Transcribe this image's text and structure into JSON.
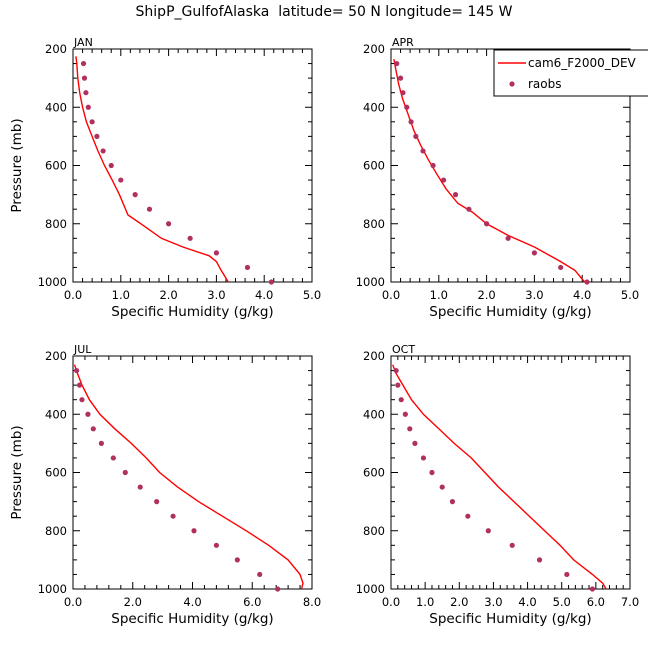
{
  "title": "ShipP_GulfofAlaska  latitude= 50 N longitude= 145 W",
  "colors": {
    "model": "#ff0000",
    "obs": "#b03060"
  },
  "chart_data": [
    {
      "type": "line",
      "panel_label": "JAN",
      "xlabel": "Specific Humidity (g/kg)",
      "ylabel": "Pressure (mb)",
      "xlim": [
        0,
        5
      ],
      "ylim": [
        1000,
        200
      ],
      "xticks": [
        "0.0",
        "1.0",
        "2.0",
        "3.0",
        "4.0",
        "5.0"
      ],
      "yticks": [
        "200",
        "400",
        "600",
        "800",
        "1000"
      ],
      "legend": null,
      "series": [
        {
          "kind": "line",
          "points": [
            [
              0.06,
              225
            ],
            [
              0.08,
              250
            ],
            [
              0.1,
              300
            ],
            [
              0.14,
              350
            ],
            [
              0.2,
              400
            ],
            [
              0.28,
              450
            ],
            [
              0.4,
              500
            ],
            [
              0.52,
              550
            ],
            [
              0.66,
              600
            ],
            [
              0.82,
              650
            ],
            [
              0.97,
              700
            ],
            [
              1.15,
              770
            ],
            [
              1.42,
              800
            ],
            [
              1.85,
              850
            ],
            [
              2.3,
              880
            ],
            [
              2.85,
              910
            ],
            [
              3.0,
              930
            ],
            [
              3.1,
              960
            ],
            [
              3.25,
              1000
            ]
          ]
        },
        {
          "kind": "scatter",
          "points": [
            [
              0.22,
              250
            ],
            [
              0.24,
              300
            ],
            [
              0.27,
              350
            ],
            [
              0.32,
              400
            ],
            [
              0.4,
              450
            ],
            [
              0.5,
              500
            ],
            [
              0.63,
              550
            ],
            [
              0.8,
              600
            ],
            [
              1.0,
              650
            ],
            [
              1.3,
              700
            ],
            [
              1.6,
              750
            ],
            [
              2.0,
              800
            ],
            [
              2.45,
              850
            ],
            [
              3.0,
              900
            ],
            [
              3.65,
              950
            ],
            [
              4.15,
              1000
            ]
          ]
        }
      ]
    },
    {
      "type": "line",
      "panel_label": "APR",
      "xlabel": "Specific Humidity (g/kg)",
      "ylabel": "",
      "xlim": [
        0,
        5
      ],
      "ylim": [
        1000,
        200
      ],
      "xticks": [
        "0.0",
        "1.0",
        "2.0",
        "3.0",
        "4.0",
        "5.0"
      ],
      "yticks": [
        "200",
        "400",
        "600",
        "800",
        "1000"
      ],
      "legend": {
        "entries": [
          "cam6_F2000_DEV",
          "raobs"
        ]
      },
      "series": [
        {
          "kind": "line",
          "name": "cam6_F2000_DEV",
          "points": [
            [
              0.06,
              235
            ],
            [
              0.1,
              270
            ],
            [
              0.16,
              320
            ],
            [
              0.24,
              370
            ],
            [
              0.35,
              420
            ],
            [
              0.48,
              480
            ],
            [
              0.62,
              530
            ],
            [
              0.78,
              580
            ],
            [
              0.96,
              630
            ],
            [
              1.15,
              680
            ],
            [
              1.4,
              730
            ],
            [
              1.7,
              760
            ],
            [
              2.0,
              800
            ],
            [
              2.45,
              840
            ],
            [
              3.0,
              880
            ],
            [
              3.55,
              930
            ],
            [
              3.85,
              960
            ],
            [
              4.05,
              1000
            ]
          ]
        },
        {
          "kind": "scatter",
          "name": "raobs",
          "points": [
            [
              0.12,
              250
            ],
            [
              0.2,
              300
            ],
            [
              0.25,
              350
            ],
            [
              0.33,
              400
            ],
            [
              0.42,
              450
            ],
            [
              0.52,
              500
            ],
            [
              0.67,
              550
            ],
            [
              0.88,
              600
            ],
            [
              1.1,
              650
            ],
            [
              1.35,
              700
            ],
            [
              1.63,
              750
            ],
            [
              2.0,
              800
            ],
            [
              2.45,
              850
            ],
            [
              3.0,
              900
            ],
            [
              3.55,
              950
            ],
            [
              4.1,
              1000
            ]
          ]
        }
      ]
    },
    {
      "type": "line",
      "panel_label": "JUL",
      "xlabel": "Specific Humidity (g/kg)",
      "ylabel": "Pressure (mb)",
      "xlim": [
        0,
        8
      ],
      "ylim": [
        1000,
        200
      ],
      "xticks": [
        "0.0",
        "2.0",
        "4.0",
        "6.0",
        "8.0"
      ],
      "yticks": [
        "200",
        "400",
        "600",
        "800",
        "1000"
      ],
      "legend": null,
      "series": [
        {
          "kind": "line",
          "points": [
            [
              0.05,
              230
            ],
            [
              0.15,
              260
            ],
            [
              0.3,
              300
            ],
            [
              0.55,
              350
            ],
            [
              0.9,
              400
            ],
            [
              1.4,
              450
            ],
            [
              1.95,
              500
            ],
            [
              2.45,
              550
            ],
            [
              2.9,
              600
            ],
            [
              3.5,
              650
            ],
            [
              4.2,
              700
            ],
            [
              5.0,
              750
            ],
            [
              5.8,
              800
            ],
            [
              6.55,
              850
            ],
            [
              7.2,
              900
            ],
            [
              7.6,
              950
            ],
            [
              7.7,
              980
            ],
            [
              7.65,
              1000
            ]
          ]
        },
        {
          "kind": "scatter",
          "points": [
            [
              0.12,
              250
            ],
            [
              0.22,
              300
            ],
            [
              0.3,
              350
            ],
            [
              0.5,
              400
            ],
            [
              0.68,
              450
            ],
            [
              0.95,
              500
            ],
            [
              1.35,
              550
            ],
            [
              1.75,
              600
            ],
            [
              2.25,
              650
            ],
            [
              2.8,
              700
            ],
            [
              3.35,
              750
            ],
            [
              4.05,
              800
            ],
            [
              4.8,
              850
            ],
            [
              5.5,
              900
            ],
            [
              6.25,
              950
            ],
            [
              6.85,
              1000
            ]
          ]
        }
      ]
    },
    {
      "type": "line",
      "panel_label": "OCT",
      "xlabel": "Specific Humidity (g/kg)",
      "ylabel": "",
      "xlim": [
        0,
        7
      ],
      "ylim": [
        1000,
        200
      ],
      "xticks": [
        "0.0",
        "1.0",
        "2.0",
        "3.0",
        "4.0",
        "5.0",
        "6.0",
        "7.0"
      ],
      "yticks": [
        "200",
        "400",
        "600",
        "800",
        "1000"
      ],
      "legend": null,
      "series": [
        {
          "kind": "line",
          "points": [
            [
              0.05,
              230
            ],
            [
              0.15,
              260
            ],
            [
              0.35,
              300
            ],
            [
              0.6,
              350
            ],
            [
              0.95,
              400
            ],
            [
              1.4,
              450
            ],
            [
              1.85,
              500
            ],
            [
              2.35,
              550
            ],
            [
              2.75,
              600
            ],
            [
              3.15,
              650
            ],
            [
              3.6,
              700
            ],
            [
              4.05,
              750
            ],
            [
              4.5,
              800
            ],
            [
              4.95,
              850
            ],
            [
              5.35,
              900
            ],
            [
              5.9,
              950
            ],
            [
              6.2,
              980
            ],
            [
              6.3,
              1000
            ]
          ]
        },
        {
          "kind": "scatter",
          "points": [
            [
              0.15,
              250
            ],
            [
              0.2,
              300
            ],
            [
              0.3,
              350
            ],
            [
              0.42,
              400
            ],
            [
              0.55,
              450
            ],
            [
              0.7,
              500
            ],
            [
              0.95,
              550
            ],
            [
              1.2,
              600
            ],
            [
              1.5,
              650
            ],
            [
              1.8,
              700
            ],
            [
              2.25,
              750
            ],
            [
              2.85,
              800
            ],
            [
              3.55,
              850
            ],
            [
              4.35,
              900
            ],
            [
              5.15,
              950
            ],
            [
              5.9,
              1000
            ]
          ]
        }
      ]
    }
  ]
}
